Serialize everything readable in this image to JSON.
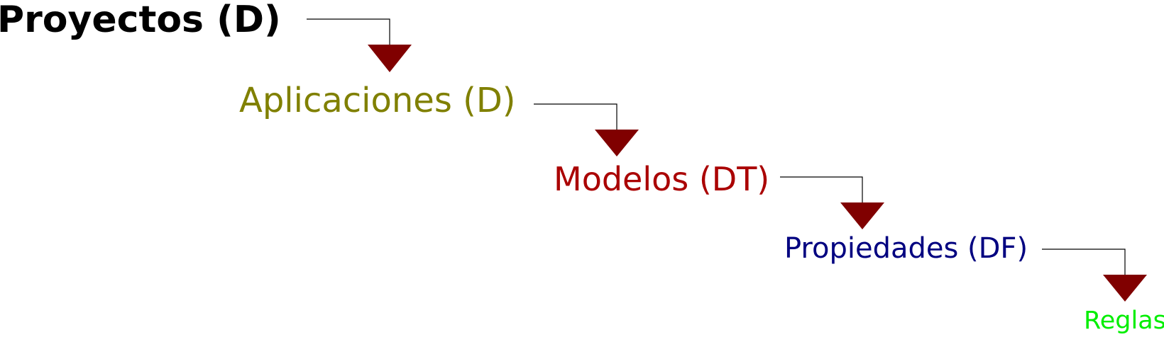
{
  "levels": [
    {
      "label": "Proyectos (D)",
      "color": "#000000"
    },
    {
      "label": "Aplicaciones (D)",
      "color": "#808000"
    },
    {
      "label": "Modelos (DT)",
      "color": "#aa0000"
    },
    {
      "label": "Propiedades (DF)",
      "color": "#000080"
    },
    {
      "label": "Reglas",
      "color": "#00ee00"
    }
  ],
  "colors": {
    "connector": "#000000",
    "arrow": "#800000"
  }
}
